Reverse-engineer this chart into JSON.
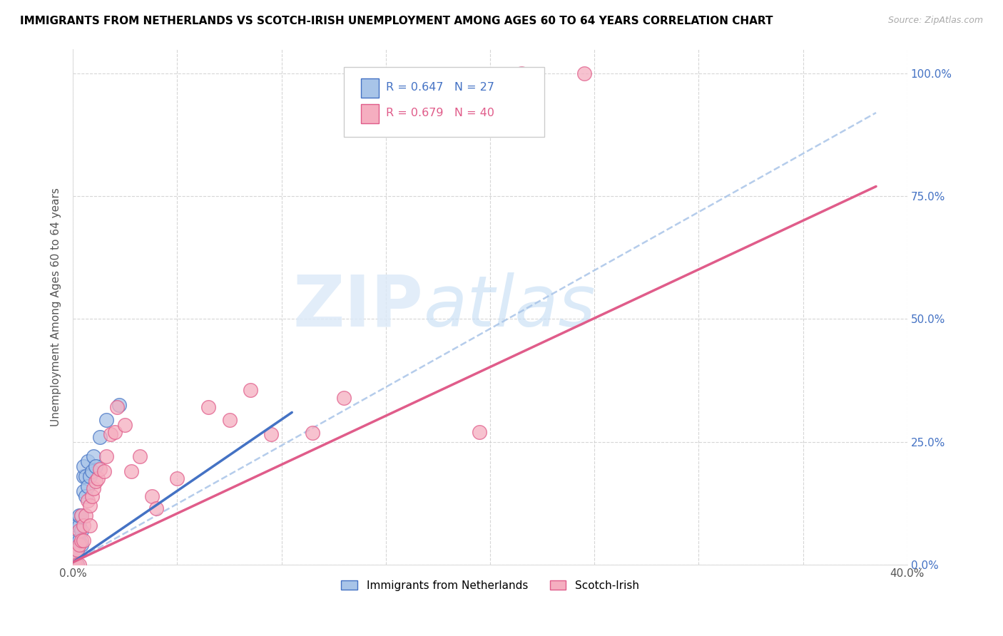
{
  "title": "IMMIGRANTS FROM NETHERLANDS VS SCOTCH-IRISH UNEMPLOYMENT AMONG AGES 60 TO 64 YEARS CORRELATION CHART",
  "source": "Source: ZipAtlas.com",
  "ylabel": "Unemployment Among Ages 60 to 64 years",
  "xlim": [
    0,
    0.4
  ],
  "ylim": [
    0,
    1.05
  ],
  "ytick_positions": [
    0.0,
    0.25,
    0.5,
    0.75,
    1.0
  ],
  "ytick_labels_right": [
    "0.0%",
    "25.0%",
    "50.0%",
    "75.0%",
    "100.0%"
  ],
  "xtick_positions": [
    0.0,
    0.05,
    0.1,
    0.15,
    0.2,
    0.25,
    0.3,
    0.35,
    0.4
  ],
  "xtick_labels": [
    "0.0%",
    "",
    "",
    "",
    "",
    "",
    "",
    "",
    "40.0%"
  ],
  "legend_r1": "R = 0.647",
  "legend_n1": "N = 27",
  "legend_r2": "R = 0.679",
  "legend_n2": "N = 40",
  "series1_label": "Immigrants from Netherlands",
  "series2_label": "Scotch-Irish",
  "color1": "#a8c4e8",
  "color2": "#f5aec0",
  "line_color1": "#4472C4",
  "line_color2": "#E05C8A",
  "dash_color": "#a8c4e8",
  "netherlands_x": [
    0.001,
    0.001,
    0.001,
    0.002,
    0.002,
    0.002,
    0.002,
    0.003,
    0.003,
    0.003,
    0.004,
    0.004,
    0.004,
    0.005,
    0.005,
    0.005,
    0.006,
    0.006,
    0.007,
    0.007,
    0.008,
    0.009,
    0.01,
    0.011,
    0.013,
    0.016,
    0.022
  ],
  "netherlands_y": [
    0.0,
    0.0,
    0.02,
    0.0,
    0.03,
    0.05,
    0.08,
    0.05,
    0.08,
    0.1,
    0.04,
    0.07,
    0.1,
    0.15,
    0.18,
    0.2,
    0.14,
    0.18,
    0.16,
    0.21,
    0.18,
    0.19,
    0.22,
    0.2,
    0.26,
    0.295,
    0.325
  ],
  "scotchirish_x": [
    0.001,
    0.001,
    0.002,
    0.002,
    0.003,
    0.003,
    0.003,
    0.004,
    0.004,
    0.005,
    0.005,
    0.006,
    0.007,
    0.008,
    0.008,
    0.009,
    0.01,
    0.011,
    0.012,
    0.013,
    0.015,
    0.016,
    0.018,
    0.02,
    0.021,
    0.025,
    0.028,
    0.032,
    0.038,
    0.04,
    0.05,
    0.065,
    0.075,
    0.085,
    0.095,
    0.115,
    0.13,
    0.195,
    0.215,
    0.245
  ],
  "scotchirish_y": [
    0.0,
    0.02,
    0.0,
    0.03,
    0.0,
    0.04,
    0.07,
    0.05,
    0.1,
    0.05,
    0.08,
    0.1,
    0.13,
    0.08,
    0.12,
    0.14,
    0.155,
    0.17,
    0.175,
    0.195,
    0.19,
    0.22,
    0.265,
    0.27,
    0.32,
    0.285,
    0.19,
    0.22,
    0.14,
    0.115,
    0.175,
    0.32,
    0.295,
    0.355,
    0.265,
    0.268,
    0.34,
    0.27,
    1.0,
    1.0
  ],
  "blue_line_x0": 0.0,
  "blue_line_x1": 0.105,
  "blue_line_y0": 0.005,
  "blue_line_y1": 0.31,
  "dash_line_x0": 0.0,
  "dash_line_x1": 0.385,
  "dash_line_y0": 0.005,
  "dash_line_y1": 0.92,
  "pink_line_x0": 0.0,
  "pink_line_x1": 0.385,
  "pink_line_y0": 0.005,
  "pink_line_y1": 0.77
}
